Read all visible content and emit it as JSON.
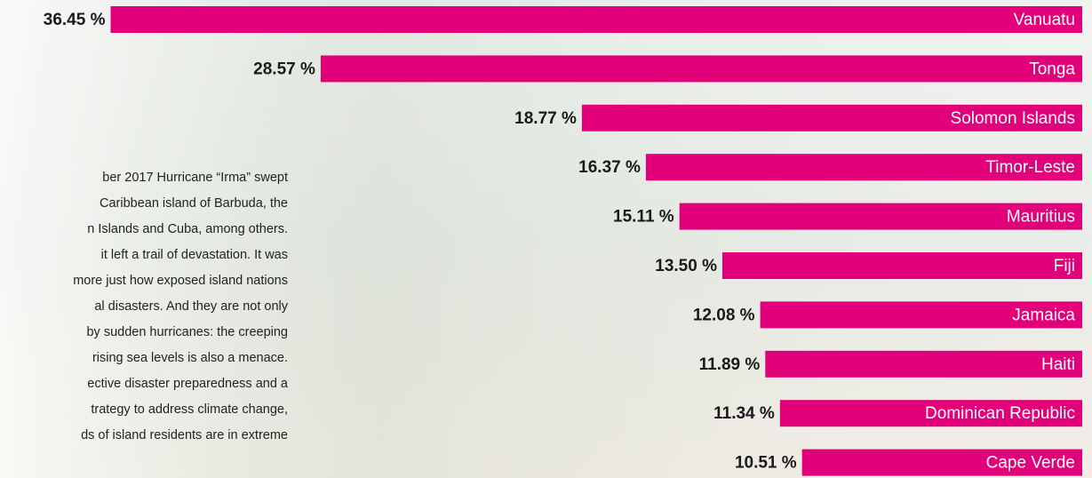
{
  "chart_data": {
    "type": "bar",
    "orientation": "horizontal",
    "categories": [
      "Vanuatu",
      "Tonga",
      "Solomon Islands",
      "Timor-Leste",
      "Mauritius",
      "Fiji",
      "Jamaica",
      "Haiti",
      "Dominican Republic",
      "Cape Verde"
    ],
    "values": [
      36.45,
      28.57,
      18.77,
      16.37,
      15.11,
      13.5,
      12.08,
      11.89,
      11.34,
      10.51
    ],
    "value_labels": [
      "36.45 %",
      "28.57 %",
      "18.77 %",
      "16.37 %",
      "15.11 %",
      "13.50 %",
      "12.08 %",
      "11.89 %",
      "11.34 %",
      "10.51 %"
    ],
    "color": "#e2007a"
  },
  "text": {
    "lines": [
      "ber 2017 Hurricane “Irma” swept",
      "Caribbean island of Barbuda, the",
      "n Islands and Cuba, among others.",
      "it left a trail of devastation. It was",
      "more just how exposed island nations",
      "al disasters. And they are not only",
      "by sudden hurricanes: the creeping",
      "rising sea levels is also a menace.",
      "ective disaster preparedness and a",
      "trategy to address climate change,",
      "ds of island residents are in extreme"
    ]
  }
}
